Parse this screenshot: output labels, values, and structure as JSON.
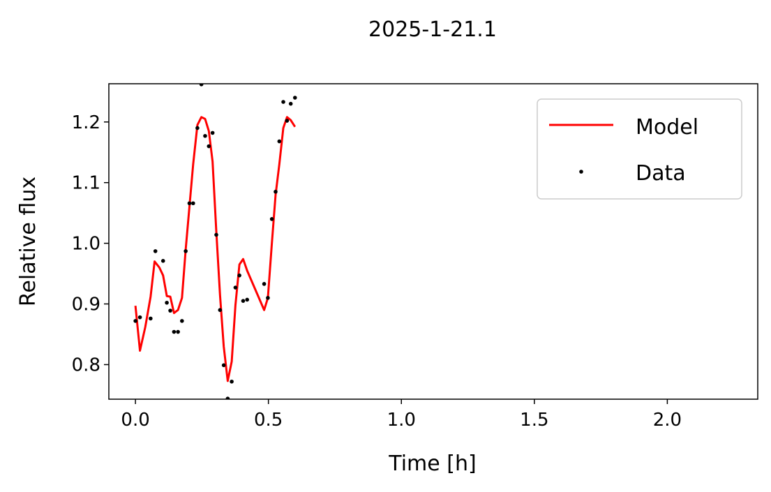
{
  "chart_data": {
    "type": "scatter",
    "title": "2025-1-21.1",
    "xlabel": "Time [h]",
    "ylabel": "Relative flux",
    "xlim": [
      -0.1,
      2.34
    ],
    "ylim": [
      0.743,
      1.263
    ],
    "xticks": [
      0.0,
      0.5,
      1.0,
      1.5,
      2.0
    ],
    "xtick_labels": [
      "0.0",
      "0.5",
      "1.0",
      "1.5",
      "2.0"
    ],
    "yticks": [
      0.8,
      0.9,
      1.0,
      1.1,
      1.2
    ],
    "ytick_labels": [
      "0.8",
      "0.9",
      "1.0",
      "1.1",
      "1.2"
    ],
    "grid": false,
    "legend": {
      "placement": "top-right",
      "entries": [
        "Model",
        "Data"
      ]
    },
    "colors": {
      "model": "#ff0000",
      "data": "#000000"
    },
    "series": [
      {
        "name": "Model",
        "kind": "line",
        "points": [
          [
            0.0,
            0.897
          ],
          [
            0.017,
            0.823
          ],
          [
            0.037,
            0.862
          ],
          [
            0.057,
            0.912
          ],
          [
            0.072,
            0.97
          ],
          [
            0.09,
            0.96
          ],
          [
            0.104,
            0.947
          ],
          [
            0.118,
            0.913
          ],
          [
            0.131,
            0.912
          ],
          [
            0.145,
            0.885
          ],
          [
            0.16,
            0.89
          ],
          [
            0.175,
            0.91
          ],
          [
            0.189,
            0.99
          ],
          [
            0.203,
            1.06
          ],
          [
            0.217,
            1.13
          ],
          [
            0.233,
            1.195
          ],
          [
            0.248,
            1.208
          ],
          [
            0.262,
            1.205
          ],
          [
            0.276,
            1.185
          ],
          [
            0.29,
            1.135
          ],
          [
            0.304,
            1.02
          ],
          [
            0.318,
            0.915
          ],
          [
            0.332,
            0.83
          ],
          [
            0.347,
            0.773
          ],
          [
            0.362,
            0.805
          ],
          [
            0.376,
            0.898
          ],
          [
            0.391,
            0.965
          ],
          [
            0.405,
            0.974
          ],
          [
            0.42,
            0.955
          ],
          [
            0.484,
            0.89
          ],
          [
            0.498,
            0.91
          ],
          [
            0.513,
            1.0
          ],
          [
            0.527,
            1.08
          ],
          [
            0.541,
            1.13
          ],
          [
            0.556,
            1.19
          ],
          [
            0.57,
            1.208
          ],
          [
            0.584,
            1.203
          ],
          [
            0.6,
            1.192
          ]
        ]
      },
      {
        "name": "Data",
        "kind": "scatter",
        "points": [
          [
            0.0,
            0.872
          ],
          [
            0.017,
            0.878
          ],
          [
            0.057,
            0.876
          ],
          [
            0.075,
            0.987
          ],
          [
            0.104,
            0.971
          ],
          [
            0.118,
            0.902
          ],
          [
            0.131,
            0.889
          ],
          [
            0.145,
            0.854
          ],
          [
            0.16,
            0.854
          ],
          [
            0.175,
            0.872
          ],
          [
            0.189,
            0.987
          ],
          [
            0.203,
            1.066
          ],
          [
            0.217,
            1.066
          ],
          [
            0.233,
            1.19
          ],
          [
            0.248,
            1.262
          ],
          [
            0.262,
            1.177
          ],
          [
            0.276,
            1.16
          ],
          [
            0.29,
            1.182
          ],
          [
            0.304,
            1.014
          ],
          [
            0.318,
            0.89
          ],
          [
            0.332,
            0.799
          ],
          [
            0.347,
            0.744
          ],
          [
            0.362,
            0.772
          ],
          [
            0.376,
            0.927
          ],
          [
            0.391,
            0.947
          ],
          [
            0.405,
            0.905
          ],
          [
            0.42,
            0.907
          ],
          [
            0.484,
            0.933
          ],
          [
            0.498,
            0.91
          ],
          [
            0.513,
            1.04
          ],
          [
            0.527,
            1.085
          ],
          [
            0.541,
            1.168
          ],
          [
            0.556,
            1.233
          ],
          [
            0.57,
            1.202
          ],
          [
            0.584,
            1.23
          ],
          [
            0.6,
            1.24
          ]
        ]
      }
    ]
  }
}
